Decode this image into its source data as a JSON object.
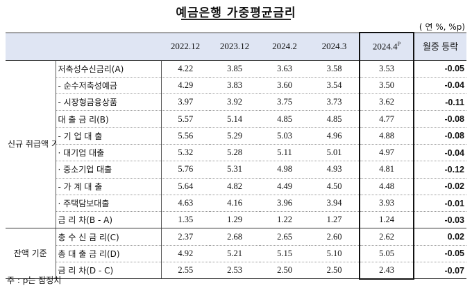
{
  "title": "예금은행 가중평균금리",
  "unit": "( 연 %, %p)",
  "columns": [
    "2022.12",
    "2023.12",
    "2024.2",
    "2024.3"
  ],
  "highlight_column": {
    "label": "2024.4",
    "sup": "P"
  },
  "change_header": "월중 등락",
  "categories": {
    "new": "신규 취급액 기준",
    "balance": "잔액 기준"
  },
  "rows": [
    {
      "label": "저축성수신금리(A)",
      "values": [
        "4.22",
        "3.85",
        "3.63",
        "3.58"
      ],
      "hl": "3.53",
      "chg": "-0.05"
    },
    {
      "label": "- 순수저축성예금",
      "values": [
        "4.29",
        "3.83",
        "3.60",
        "3.54"
      ],
      "hl": "3.50",
      "chg": "-0.04"
    },
    {
      "label": "- 시장형금융상품",
      "values": [
        "3.97",
        "3.92",
        "3.75",
        "3.73"
      ],
      "hl": "3.62",
      "chg": "-0.11"
    },
    {
      "label": "대 출 금 리(B)",
      "values": [
        "5.57",
        "5.14",
        "4.85",
        "4.85"
      ],
      "hl": "4.77",
      "chg": "-0.08"
    },
    {
      "label": "- 기 업 대 출",
      "values": [
        "5.56",
        "5.29",
        "5.03",
        "4.96"
      ],
      "hl": "4.88",
      "chg": "-0.08"
    },
    {
      "label": "· 대기업 대출",
      "values": [
        "5.32",
        "5.28",
        "5.11",
        "5.01"
      ],
      "hl": "4.97",
      "chg": "-0.04"
    },
    {
      "label": "· 중소기업 대출",
      "values": [
        "5.76",
        "5.31",
        "4.98",
        "4.93"
      ],
      "hl": "4.81",
      "chg": "-0.12"
    },
    {
      "label": "- 가 계 대 출",
      "values": [
        "5.64",
        "4.82",
        "4.49",
        "4.50"
      ],
      "hl": "4.48",
      "chg": "-0.02"
    },
    {
      "label": "· 주택담보대출",
      "values": [
        "4.63",
        "4.16",
        "3.96",
        "3.94"
      ],
      "hl": "3.93",
      "chg": "-0.01"
    },
    {
      "label": "금 리 차(B - A)",
      "values": [
        "1.35",
        "1.29",
        "1.22",
        "1.27"
      ],
      "hl": "1.24",
      "chg": "-0.03"
    },
    {
      "label": "총 수 신 금 리(C)",
      "values": [
        "2.37",
        "2.68",
        "2.65",
        "2.60"
      ],
      "hl": "2.62",
      "chg": "0.02"
    },
    {
      "label": "총 대 출 금 리(D)",
      "values": [
        "4.92",
        "5.21",
        "5.15",
        "5.10"
      ],
      "hl": "5.05",
      "chg": "-0.05"
    },
    {
      "label": "금 리 차(D - C)",
      "values": [
        "2.55",
        "2.53",
        "2.50",
        "2.50"
      ],
      "hl": "2.43",
      "chg": "-0.07"
    }
  ],
  "note": "주 : p는 잠정치"
}
